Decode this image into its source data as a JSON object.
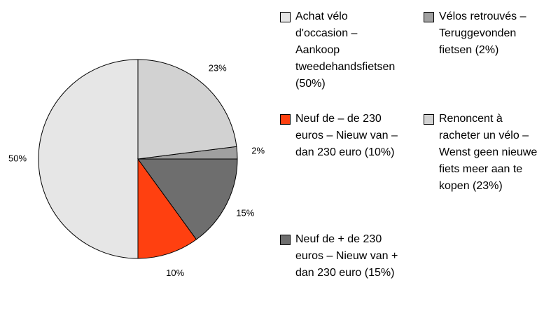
{
  "chart_data": {
    "type": "pie",
    "categories": [
      "Achat vélo d'occasion – Aankoop tweedehandsfietsen (50%)",
      "Neuf de – de 230 euros – Nieuw van – dan 230 euro (10%)",
      "Neuf de + de 230 euros – Nieuw van + dan 230 euro (15%)",
      "Vélos retrouvés – Teruggevonden fietsen (2%)",
      "Renoncent à racheter un vélo – Wenst geen nieuwe fiets meer aan te kopen (23%)"
    ],
    "values": [
      50,
      10,
      15,
      2,
      23
    ],
    "value_labels": [
      "50%",
      "10%",
      "15%",
      "2%",
      "23%"
    ],
    "colors": [
      "#e6e6e6",
      "#ff4010",
      "#6e6e6e",
      "#a0a0a0",
      "#d2d2d2"
    ]
  }
}
